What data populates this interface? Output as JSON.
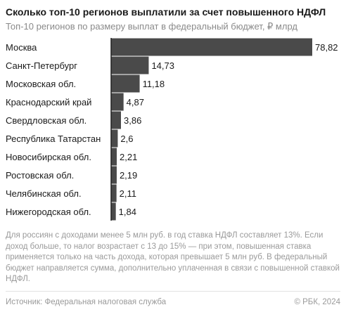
{
  "header": {
    "title": "Сколько топ-10 регионов выплатили за счет повышенного НДФЛ",
    "subtitle": "Топ-10 регионов по размеру выплат в федеральный бюджет, ₽ млрд"
  },
  "chart_data": {
    "type": "bar",
    "orientation": "horizontal",
    "categories": [
      "Москва",
      "Санкт-Петербург",
      "Московская обл.",
      "Краснодарский край",
      "Свердловская обл.",
      "Республика Татарстан",
      "Новосибирская обл.",
      "Ростовская обл.",
      "Челябинская обл.",
      "Нижегородская обл."
    ],
    "values": [
      78.82,
      14.73,
      11.18,
      4.87,
      3.86,
      2.6,
      2.21,
      2.19,
      2.11,
      1.84
    ],
    "value_labels": [
      "78,82",
      "14,73",
      "11,18",
      "4,87",
      "3,86",
      "2,6",
      "2,21",
      "2,19",
      "2,11",
      "1,84"
    ],
    "xlim": [
      0,
      78.82
    ],
    "bar_color": "#4a4a4a",
    "axis_color": "#222222"
  },
  "footer": {
    "note": "Для россиян с доходами менее 5 млн руб. в год ставка НДФЛ составляет 13%. Если доход больше, то налог возрастает с 13 до 15% — при этом, повышенная ставка применяется только на часть дохода, которая превышает 5 млн руб. В федеральный бюджет направляется сумма, дополнительно уплаченная в связи с повышенной ставкой НДФЛ.",
    "source": "Источник: Федеральная налоговая служба",
    "copyright": "© РБК, 2024"
  }
}
